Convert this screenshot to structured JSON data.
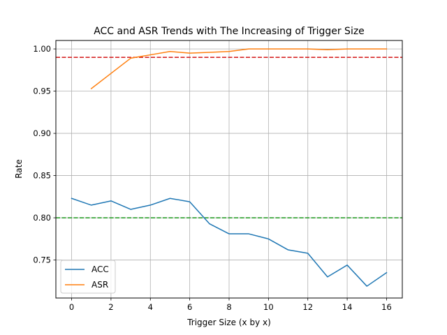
{
  "chart_data": {
    "type": "line",
    "title": "ACC and ASR Trends with The Increasing of Trigger Size",
    "xlabel": "Trigger Size (x by x)",
    "ylabel": "Rate",
    "xlim": [
      -0.8,
      16.8
    ],
    "ylim": [
      0.705,
      1.01
    ],
    "xticks": [
      0,
      2,
      4,
      6,
      8,
      10,
      12,
      14,
      16
    ],
    "xtick_labels": [
      "0",
      "2",
      "4",
      "6",
      "8",
      "10",
      "12",
      "14",
      "16"
    ],
    "yticks": [
      0.75,
      0.8,
      0.85,
      0.9,
      0.95,
      1.0
    ],
    "ytick_labels": [
      "0.75",
      "0.80",
      "0.85",
      "0.90",
      "0.95",
      "1.00"
    ],
    "grid": true,
    "legend_position": "lower-left",
    "series": [
      {
        "name": "ACC",
        "color": "#1f77b4",
        "x": [
          0,
          1,
          2,
          3,
          4,
          5,
          6,
          7,
          8,
          9,
          10,
          11,
          12,
          13,
          14,
          15,
          16
        ],
        "y": [
          0.823,
          0.815,
          0.82,
          0.81,
          0.815,
          0.823,
          0.819,
          0.793,
          0.781,
          0.781,
          0.775,
          0.762,
          0.758,
          0.73,
          0.744,
          0.719,
          0.735
        ]
      },
      {
        "name": "ASR",
        "color": "#ff7f0e",
        "x": [
          1,
          2,
          3,
          4,
          5,
          6,
          7,
          8,
          9,
          10,
          11,
          12,
          13,
          14,
          15,
          16
        ],
        "y": [
          0.953,
          0.971,
          0.989,
          0.993,
          0.997,
          0.995,
          0.996,
          0.997,
          1.0,
          1.0,
          1.0,
          1.0,
          0.999,
          1.0,
          1.0,
          1.0
        ]
      }
    ],
    "reference_lines": [
      {
        "y": 0.99,
        "color": "#d62728",
        "style": "dashed"
      },
      {
        "y": 0.8,
        "color": "#2ca02c",
        "style": "dashed"
      }
    ]
  }
}
